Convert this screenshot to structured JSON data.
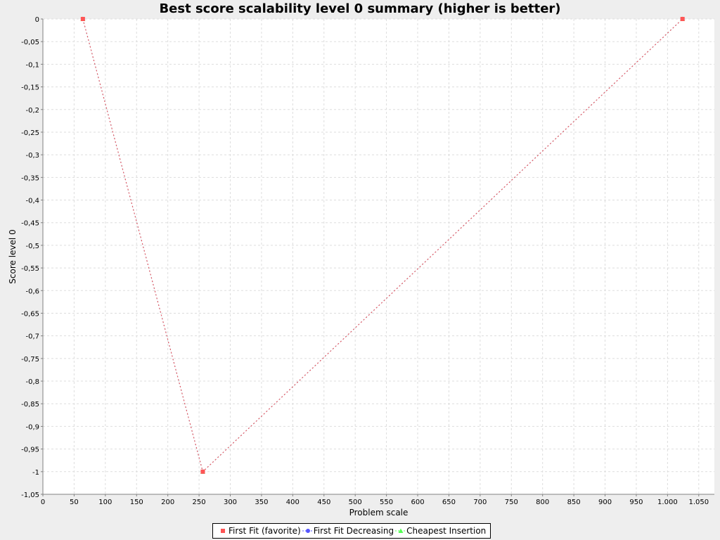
{
  "chart_data": {
    "type": "line",
    "title": "Best score scalability level 0 summary (higher is better)",
    "xlabel": "Problem scale",
    "ylabel": "Score level 0",
    "xlim": [
      0,
      1075
    ],
    "ylim": [
      -1.05,
      0
    ],
    "x_ticks": [
      0,
      50,
      100,
      150,
      200,
      250,
      300,
      350,
      400,
      450,
      500,
      550,
      600,
      650,
      700,
      750,
      800,
      850,
      900,
      950,
      1000,
      1050
    ],
    "x_tick_labels": [
      "0",
      "50",
      "100",
      "150",
      "200",
      "250",
      "300",
      "350",
      "400",
      "450",
      "500",
      "550",
      "600",
      "650",
      "700",
      "750",
      "800",
      "850",
      "900",
      "950",
      "1.000",
      "1.050"
    ],
    "y_ticks": [
      0,
      -0.05,
      -0.1,
      -0.15,
      -0.2,
      -0.25,
      -0.3,
      -0.35,
      -0.4,
      -0.45,
      -0.5,
      -0.55,
      -0.6,
      -0.65,
      -0.7,
      -0.75,
      -0.8,
      -0.85,
      -0.9,
      -0.95,
      -1,
      -1.05
    ],
    "y_tick_labels": [
      "0",
      "-0,05",
      "-0,1",
      "-0,15",
      "-0,2",
      "-0,25",
      "-0,3",
      "-0,35",
      "-0,4",
      "-0,45",
      "-0,5",
      "-0,55",
      "-0,6",
      "-0,65",
      "-0,7",
      "-0,75",
      "-0,8",
      "-0,85",
      "-0,9",
      "-0,95",
      "-1",
      "-1,05"
    ],
    "grid": true,
    "legend_position": "bottom",
    "series": [
      {
        "name": "First Fit (favorite)",
        "color": "#ff5555",
        "marker": "square",
        "line_style": "dotted",
        "x": [
          64,
          256,
          1024
        ],
        "y": [
          0,
          -1,
          0
        ]
      },
      {
        "name": "First Fit Decreasing",
        "color": "#5555ff",
        "marker": "circle",
        "line_style": "dotted",
        "x": [
          64,
          256,
          1024
        ],
        "y": [
          0,
          -1,
          0
        ]
      },
      {
        "name": "Cheapest Insertion",
        "color": "#55ff55",
        "marker": "triangle",
        "line_style": "dotted",
        "x": [
          64,
          256,
          1024
        ],
        "y": [
          0,
          -1,
          0
        ]
      }
    ]
  }
}
